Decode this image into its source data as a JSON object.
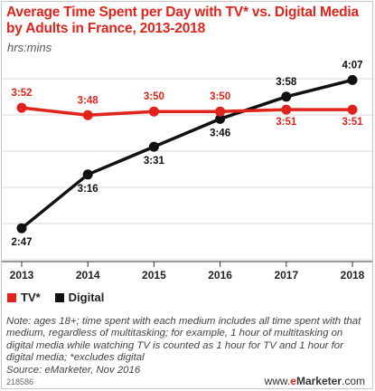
{
  "title": "Average Time Spent per Day with TV* vs. Digital Media by Adults in France, 2013-2018",
  "subtitle": "hrs:mins",
  "legend": {
    "tv": "TV*",
    "digital": "Digital"
  },
  "notes": "Note: ages 18+; time spent with each medium includes all time spent with that medium, regardless of multitasking; for example, 1 hour of multitasking on digital media while watching TV is counted as 1 hour for TV and 1 hour for digital media; *excludes digital",
  "source": "Source: eMarketer, Nov 2016",
  "chart_id": "218586",
  "brand": {
    "www": "www.",
    "e": "e",
    "marketer": "Marketer",
    "com": ".com"
  },
  "colors": {
    "tv": "#e0241b",
    "digital": "#111111",
    "grid": "#d9d9d9"
  },
  "chart_data": {
    "type": "line",
    "title": "Average Time Spent per Day with TV* vs. Digital Media by Adults in France, 2013-2018",
    "ylabel": "hrs:mins",
    "x": [
      "2013",
      "2014",
      "2015",
      "2016",
      "2017",
      "2018"
    ],
    "ylim": [
      2.5,
      4.25
    ],
    "grid": true,
    "legend_position": "bottom-left",
    "series": [
      {
        "name": "TV*",
        "values": [
          3.8667,
          3.8,
          3.8333,
          3.8333,
          3.85,
          3.85
        ],
        "labels": [
          "3:52",
          "3:48",
          "3:50",
          "3:50",
          "3:51",
          "3:51"
        ]
      },
      {
        "name": "Digital",
        "values": [
          2.7833,
          3.2667,
          3.5167,
          3.7667,
          3.9667,
          4.1167
        ],
        "labels": [
          "2:47",
          "3:16",
          "3:31",
          "3:46",
          "3:58",
          "4:07"
        ]
      }
    ]
  }
}
